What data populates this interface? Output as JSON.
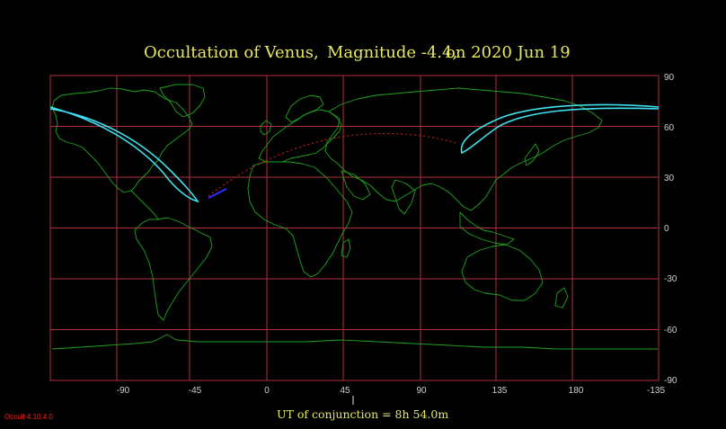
{
  "title": {
    "object": "Occultation  of  Venus,",
    "magnitude": "Magnitude -4.4,",
    "date": "on  2020 Jun 19"
  },
  "footer": {
    "conjunction": "UT of conjunction =  8h 54.0m",
    "version": "Occult 4.10.4.0"
  },
  "axes": {
    "longitude_ticks": [
      "-90",
      "-45",
      "0",
      "45",
      "90",
      "135",
      "180",
      "-135"
    ],
    "latitude_ticks": [
      "90",
      "60",
      "30",
      "0",
      "-30",
      "-60",
      "-90"
    ]
  },
  "colors": {
    "background": "#000000",
    "grid": "#b0303a",
    "coastline": "#1fa51f",
    "occultation_limit": "#40e0f0",
    "sun_path": "#e02020",
    "moon_marker": "#3030ff",
    "title": "#e8e860",
    "tick_label": "#d0d0d0",
    "version_label": "#ff2020"
  }
}
